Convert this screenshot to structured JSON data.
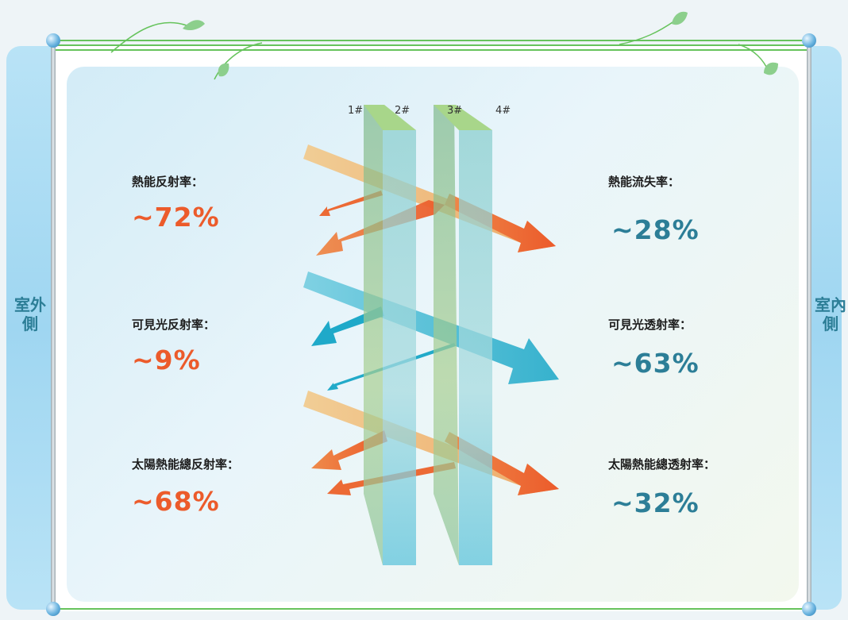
{
  "sides": {
    "outdoor": "室外側",
    "indoor": "室內側"
  },
  "surfaces": [
    "1#",
    "2#",
    "3#",
    "4#"
  ],
  "left_metrics": [
    {
      "label": "熱能反射率：",
      "value": "~72%"
    },
    {
      "label": "可見光反射率：",
      "value": "~9%"
    },
    {
      "label": "太陽熱能總反射率：",
      "value": "~68%"
    }
  ],
  "right_metrics": [
    {
      "label": "熱能流失率：",
      "value": "~28%"
    },
    {
      "label": "可見光透射率：",
      "value": "~63%"
    },
    {
      "label": "太陽熱能總透射率：",
      "value": "~32%"
    }
  ],
  "colors": {
    "heat": "#ec5b2b",
    "heat_light": "#efc07c",
    "light": "#1fa9c9",
    "value_teal": "#2c7e97",
    "glass_green": "#86bd86",
    "glass_blue": "#5ec4dc",
    "frame_green": "#66c35c"
  }
}
